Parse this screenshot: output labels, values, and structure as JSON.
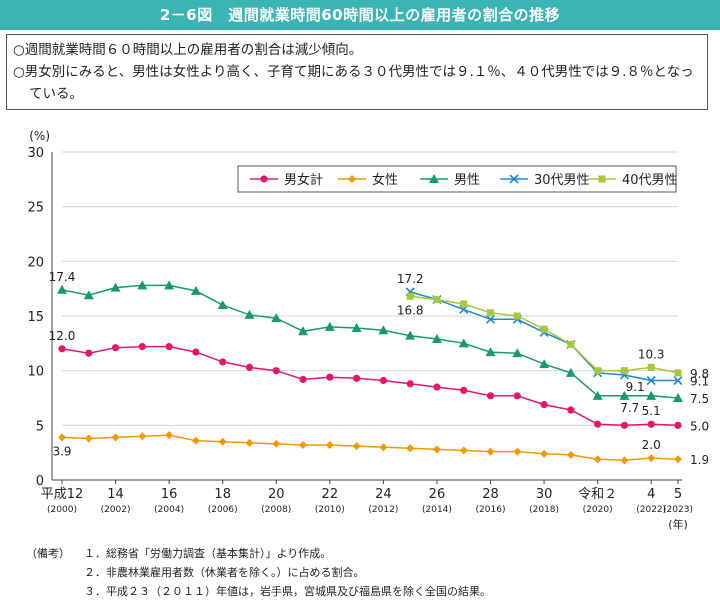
{
  "title": "2－6図　週間就業時間60時間以上の雇用者の割合の推移",
  "summary": [
    "○週間就業時間６０時間以上の雇用者の割合は減少傾向。",
    "○男女別にみると、男性は女性より高く、子育て期にある３０代男性では９.１％、４０代男性では９.８％となっている。"
  ],
  "notes": {
    "label": "（備考）",
    "items": [
      "１．総務省「労働力調査（基本集計）」より作成。",
      "２．非農林業雇用者数（休業者を除く。）に占める割合。",
      "３．平成２３（２０１１）年値は，岩手県，宮城県及び福島県を除く全国の結果。"
    ]
  },
  "chart_data": {
    "type": "line",
    "ylabel": "(%)",
    "xlabel": "(年)",
    "ylim": [
      0,
      30
    ],
    "yticks": [
      0,
      5,
      10,
      15,
      20,
      25,
      30
    ],
    "x": [
      2000,
      2001,
      2002,
      2003,
      2004,
      2005,
      2006,
      2007,
      2008,
      2009,
      2010,
      2011,
      2012,
      2013,
      2014,
      2015,
      2016,
      2017,
      2018,
      2019,
      2020,
      2021,
      2022,
      2023
    ],
    "xticks": [
      {
        "x": 2000,
        "label": "平成12",
        "sub": "(2000)"
      },
      {
        "x": 2002,
        "label": "14",
        "sub": "(2002)"
      },
      {
        "x": 2004,
        "label": "16",
        "sub": "(2004)"
      },
      {
        "x": 2006,
        "label": "18",
        "sub": "(2006)"
      },
      {
        "x": 2008,
        "label": "20",
        "sub": "(2008)"
      },
      {
        "x": 2010,
        "label": "22",
        "sub": "(2010)"
      },
      {
        "x": 2012,
        "label": "24",
        "sub": "(2012)"
      },
      {
        "x": 2014,
        "label": "26",
        "sub": "(2014)"
      },
      {
        "x": 2016,
        "label": "28",
        "sub": "(2016)"
      },
      {
        "x": 2018,
        "label": "30",
        "sub": "(2018)"
      },
      {
        "x": 2020,
        "label": "令和２",
        "sub": "(2020)"
      },
      {
        "x": 2022,
        "label": "4",
        "sub": "(2022)"
      },
      {
        "x": 2023,
        "label": "5",
        "sub": "(2023)"
      }
    ],
    "grid": true,
    "legend_position": "top-right",
    "series": [
      {
        "name": "男女計",
        "color": "#e2186b",
        "marker": "circle",
        "values": [
          12.0,
          11.6,
          12.1,
          12.2,
          12.2,
          11.7,
          10.8,
          10.3,
          10.0,
          9.2,
          9.4,
          9.3,
          9.1,
          8.8,
          8.5,
          8.2,
          7.7,
          7.7,
          6.9,
          6.4,
          5.1,
          5.0,
          5.1,
          5.0
        ]
      },
      {
        "name": "女性",
        "color": "#f39800",
        "marker": "diamond",
        "values": [
          3.9,
          3.8,
          3.9,
          4.0,
          4.1,
          3.6,
          3.5,
          3.4,
          3.3,
          3.2,
          3.2,
          3.1,
          3.0,
          2.9,
          2.8,
          2.7,
          2.6,
          2.6,
          2.4,
          2.3,
          1.9,
          1.8,
          2.0,
          1.9
        ]
      },
      {
        "name": "男性",
        "color": "#1a9a6c",
        "marker": "triangle",
        "values": [
          17.4,
          16.9,
          17.6,
          17.8,
          17.8,
          17.3,
          16.0,
          15.1,
          14.8,
          13.6,
          14.0,
          13.9,
          13.7,
          13.2,
          12.9,
          12.5,
          11.7,
          11.6,
          10.6,
          9.8,
          7.7,
          7.7,
          7.7,
          7.5
        ]
      },
      {
        "name": "30代男性",
        "color": "#1e88d4",
        "marker": "cross",
        "values": [
          null,
          null,
          null,
          null,
          null,
          null,
          null,
          null,
          null,
          null,
          null,
          null,
          null,
          17.2,
          16.5,
          15.6,
          14.7,
          14.7,
          13.5,
          12.4,
          9.8,
          9.6,
          9.1,
          9.1
        ]
      },
      {
        "name": "40代男性",
        "color": "#a8c83a",
        "marker": "square",
        "values": [
          null,
          null,
          null,
          null,
          null,
          null,
          null,
          null,
          null,
          null,
          null,
          null,
          null,
          16.8,
          16.5,
          16.1,
          15.3,
          15.0,
          13.8,
          12.4,
          10.0,
          10.0,
          10.3,
          9.8
        ]
      }
    ],
    "annotations": [
      {
        "text": "17.4",
        "x": 2000,
        "y": 17.4,
        "pos": "above"
      },
      {
        "text": "12.0",
        "x": 2000,
        "y": 12.0,
        "pos": "above"
      },
      {
        "text": "3.9",
        "x": 2000,
        "y": 3.9,
        "pos": "below"
      },
      {
        "text": "17.2",
        "x": 2013,
        "y": 17.2,
        "pos": "above"
      },
      {
        "text": "16.8",
        "x": 2013,
        "y": 16.8,
        "pos": "below"
      },
      {
        "text": "10.3",
        "x": 2022,
        "y": 10.3,
        "pos": "above"
      },
      {
        "text": "9.1",
        "x": 2021.4,
        "y": 8.5,
        "pos": "free"
      },
      {
        "text": "7.7",
        "x": 2021.2,
        "y": 6.6,
        "pos": "free"
      },
      {
        "text": "5.1",
        "x": 2022,
        "y": 5.1,
        "pos": "above"
      },
      {
        "text": "2.0",
        "x": 2022,
        "y": 2.0,
        "pos": "above"
      },
      {
        "text": "9.8",
        "x": 2023,
        "y": 9.8,
        "pos": "right"
      },
      {
        "text": "9.1",
        "x": 2023,
        "y": 9.1,
        "pos": "right"
      },
      {
        "text": "7.5",
        "x": 2023,
        "y": 7.5,
        "pos": "right"
      },
      {
        "text": "5.0",
        "x": 2023,
        "y": 5.0,
        "pos": "right"
      },
      {
        "text": "1.9",
        "x": 2023,
        "y": 1.9,
        "pos": "right"
      }
    ]
  }
}
